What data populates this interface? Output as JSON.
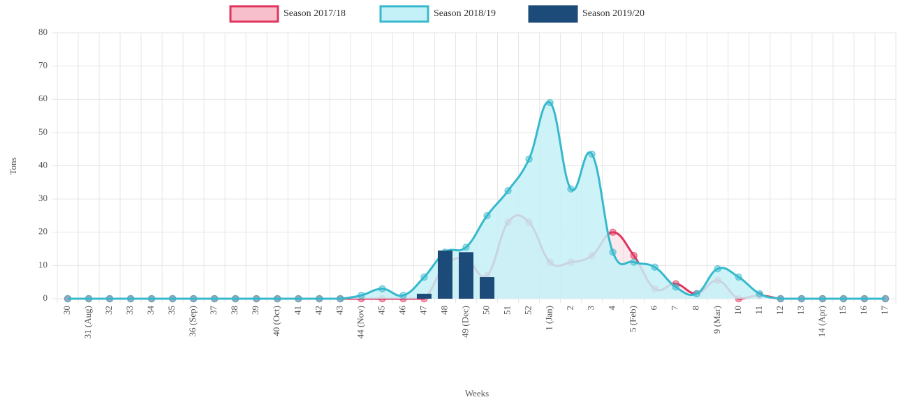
{
  "chart_data": {
    "type": "line",
    "x_label": "Weeks",
    "y_label": "Tons",
    "categories": [
      "30",
      "31 (Aug)",
      "32",
      "33",
      "34",
      "35",
      "36 (Sep)",
      "37",
      "38",
      "39",
      "40 (Oct)",
      "41",
      "42",
      "43",
      "44 (Nov)",
      "45",
      "46",
      "47",
      "48",
      "49 (Dec)",
      "50",
      "51",
      "52",
      "1 (Jan)",
      "2",
      "3",
      "4",
      "5 (Feb)",
      "6",
      "7",
      "8",
      "9 (Mar)",
      "10",
      "11",
      "12",
      "13",
      "14 (Apr)",
      "15",
      "16",
      "17"
    ],
    "series": [
      {
        "name": "Season 2017/18",
        "type": "line",
        "color": "#e0335e",
        "fill": "#f7bfcc",
        "values": [
          0,
          0,
          0,
          0,
          0,
          0,
          0,
          0,
          0,
          0,
          0,
          0,
          0,
          0,
          0,
          0,
          0,
          0,
          10,
          12,
          7,
          23,
          23,
          11,
          11,
          13,
          20,
          13,
          3,
          4.5,
          1.5,
          5.5,
          0,
          1,
          0,
          0,
          0,
          0,
          0,
          0
        ]
      },
      {
        "name": "Season 2018/19",
        "type": "line",
        "color": "#36b9cc",
        "fill": "#c4f1f7",
        "values": [
          0,
          0,
          0,
          0,
          0,
          0,
          0,
          0,
          0,
          0,
          0,
          0,
          0,
          0,
          1,
          3,
          1,
          6.5,
          14,
          15.5,
          25,
          32.5,
          42,
          59,
          33,
          43.5,
          14,
          11,
          9.5,
          3.5,
          1.5,
          9,
          6.5,
          1.5,
          0,
          0,
          0,
          0,
          0,
          0
        ]
      },
      {
        "name": "Season 2019/20",
        "type": "bar",
        "color": "#1c4b7a",
        "values": [
          0,
          0,
          0,
          0,
          0,
          0,
          0,
          0,
          0,
          0,
          0,
          0,
          0,
          0,
          0,
          0,
          0,
          1.5,
          14.5,
          14,
          6.5,
          null,
          null,
          null,
          null,
          null,
          null,
          null,
          null,
          null,
          null,
          null,
          null,
          null,
          null,
          null,
          null,
          null,
          null,
          null
        ]
      }
    ],
    "ylim": [
      0,
      80
    ],
    "yticks": [
      0,
      10,
      20,
      30,
      40,
      50,
      60,
      70,
      80
    ],
    "grid": true,
    "legend": "top"
  }
}
